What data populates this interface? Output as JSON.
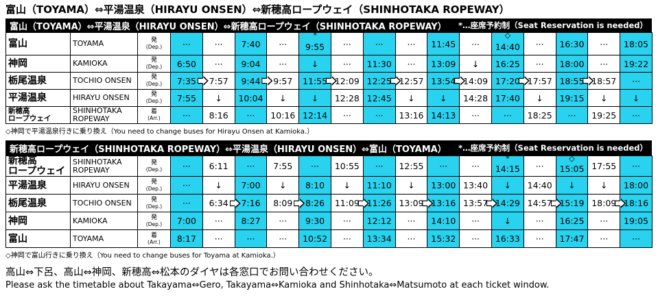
{
  "title": "富山（TOYAMA）⇔平湯温泉（HIRAYU ONSEN）⇔新穂高ロープウェイ（SHINHOTAKA ROPEWAY）",
  "tables": [
    {
      "header": "富山（TOYAMA）⇔平湯温泉（HIRAYU ONSEN）⇔新穂高ロープウェイ（SHINHOTAKA ROPEWAY）",
      "header_note": "*…座席予約制（Seat Reservation is needed）",
      "marks": [
        null,
        null,
        null,
        null,
        "*",
        null,
        null,
        null,
        null,
        null,
        "◇",
        null,
        null,
        null,
        null
      ],
      "rows": [
        {
          "jp": "富山",
          "en": "TOYAMA",
          "kind": "発",
          "kind_en": "(Dep.)",
          "times": [
            "···",
            "···",
            "7:40",
            "···",
            "9:55",
            "···",
            "···",
            "···",
            "11:45",
            "···",
            "14:40",
            "···",
            "16:30",
            "···",
            "18:05"
          ]
        },
        {
          "jp": "神岡",
          "en": "KAMIOKA",
          "kind": "発",
          "kind_en": "(Dep.)",
          "times": [
            "6:50",
            "···",
            "9:04",
            "···",
            "↓",
            "···",
            "11:30",
            "···",
            "13:09",
            "↓",
            "16:25",
            "···",
            "18:00",
            "···",
            "19:22"
          ]
        },
        {
          "jp": "栃尾温泉",
          "en": "TOCHIO ONSEN",
          "kind": "発",
          "kind_en": "(Dep.)",
          "times": [
            "7:35",
            "7:57",
            "9:44",
            "9:57",
            "11:55",
            "12:09",
            "12:25",
            "12:57",
            "13:54",
            "14:09",
            "17:20",
            "17:57",
            "18:55",
            "18:57",
            "···"
          ]
        },
        {
          "jp": "平湯温泉",
          "en": "HIRAYU ONSEN",
          "kind": "発",
          "kind_en": "(Dep.)",
          "times": [
            "7:55",
            "↓",
            "10:04",
            "↓",
            "↓",
            "12:28",
            "12:45",
            "↓",
            "↓",
            "14:28",
            "17:40",
            "↓",
            "19:15",
            "↓",
            "↓"
          ]
        },
        {
          "jp": "新穂高\nロープウェイ",
          "en": "SHINHOTAKA\nROPEWAY",
          "kind": "着",
          "kind_en": "(Arr.)",
          "times": [
            "···",
            "8:16",
            "···",
            "10:16",
            "12:14",
            "···",
            "···",
            "13:16",
            "14:13",
            "···",
            "···",
            "18:25",
            "···",
            "19:25",
            "···"
          ]
        }
      ],
      "note": "◇神岡で平湯温泉行きに乗り換え（You need to change buses for Hirayu Onsen at Kamioka.）"
    },
    {
      "header": "新穂高ロープウェイ（SHINHOTAKA ROPEWAY）⇔平湯温泉（HIRAYU ONSEN）⇔富山（TOYAMA）",
      "header_note": "*…座席予約制（Seat Reservation is needed）",
      "marks": [
        null,
        null,
        null,
        null,
        null,
        null,
        null,
        null,
        null,
        null,
        "*",
        null,
        "◇",
        null,
        null
      ],
      "rows": [
        {
          "jp": "新穂高\nロープウェイ",
          "en": "SHINHOTAKA\nROPEWAY",
          "kind": "発",
          "kind_en": "(Dep.)",
          "times": [
            "···",
            "6:11",
            "···",
            "7:55",
            "···",
            "10:55",
            "···",
            "12:55",
            "···",
            "···",
            "14:15",
            "···",
            "15:05",
            "17:55",
            "···"
          ]
        },
        {
          "jp": "平湯温泉",
          "en": "HIRAYU ONSEN",
          "kind": "発",
          "kind_en": "(Dep.)",
          "times": [
            "···",
            "↓",
            "7:00",
            "↓",
            "8:10",
            "↓",
            "11:10",
            "↓",
            "13:00",
            "13:40",
            "↓",
            "14:40",
            "↓",
            "↓",
            "18:00"
          ]
        },
        {
          "jp": "栃尾温泉",
          "en": "TOCHIO ONSEN",
          "kind": "発",
          "kind_en": "(Dep.)",
          "times": [
            "···",
            "6:34",
            "7:16",
            "8:09",
            "8:26",
            "11:09",
            "11:26",
            "13:09",
            "13:16",
            "13:57",
            "14:29",
            "14:57",
            "15:19",
            "18:09",
            "18:16"
          ]
        },
        {
          "jp": "神岡",
          "en": "KAMIOKA",
          "kind": "発",
          "kind_en": "(Dep.)",
          "times": [
            "7:00",
            "···",
            "8:27",
            "···",
            "9:30",
            "···",
            "12:12",
            "···",
            "14:10",
            "···",
            "↓",
            "···",
            "16:25",
            "···",
            "19:05"
          ]
        },
        {
          "jp": "富山",
          "en": "TOYAMA",
          "kind": "着",
          "kind_en": "(Arr.)",
          "times": [
            "8:17",
            "···",
            "···",
            "···",
            "10:52",
            "···",
            "13:34",
            "···",
            "15:32",
            "···",
            "16:33",
            "···",
            "17:47",
            "···",
            "···"
          ]
        }
      ],
      "note": "◇神岡で富山行きに乗り換え（You need to change buses for Toyama at Kamioka.）"
    }
  ],
  "footer": [
    "高山⇔下呂、高山⇔神岡、新穂高⇔松本のダイヤは各窓口でお問い合わせください。",
    "Please ask the timetable about Takayama⇔Gero, Takayama⇔Kamioka and Shinhotaka⇔Matsumoto at each ticket window."
  ]
}
